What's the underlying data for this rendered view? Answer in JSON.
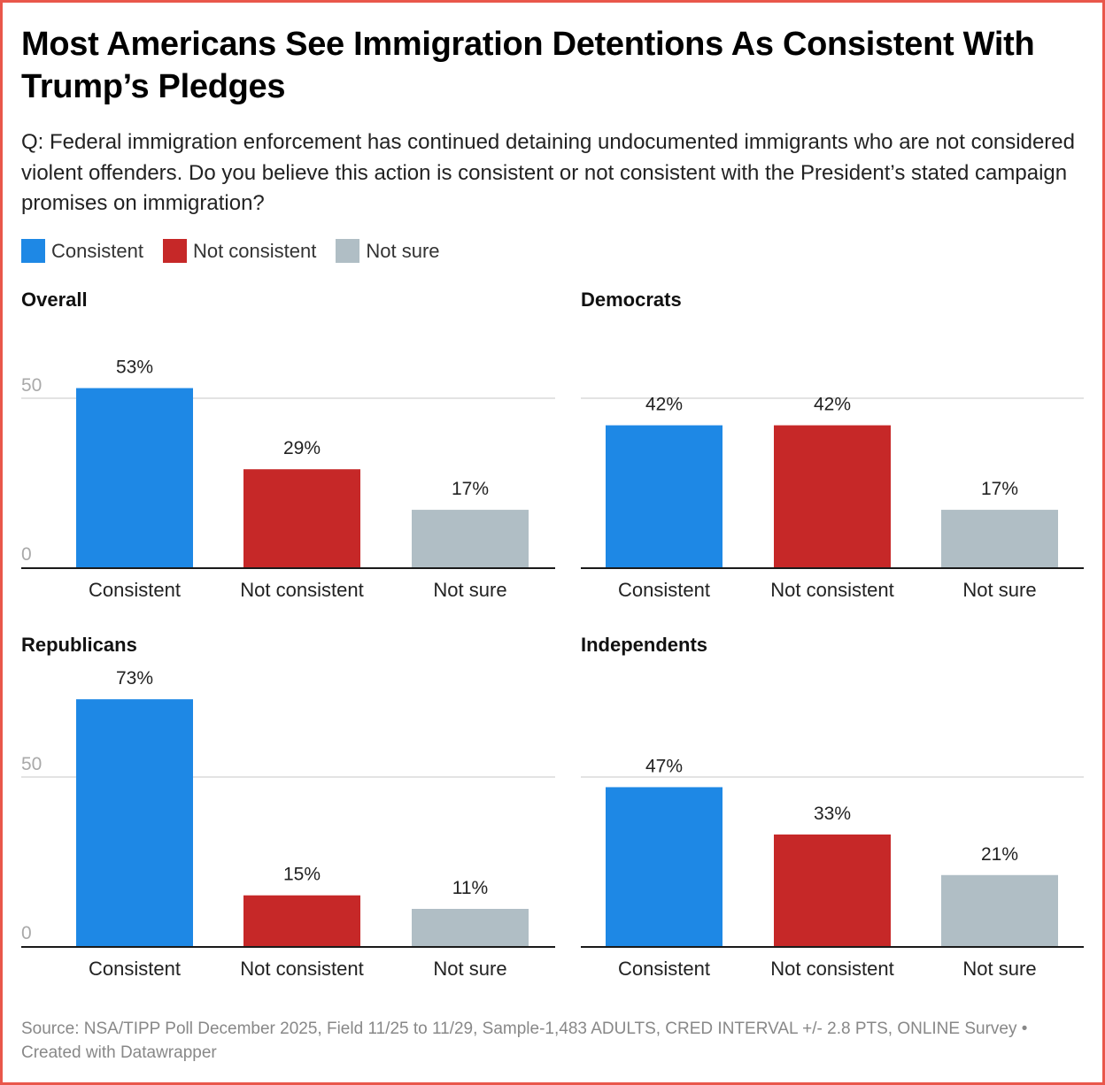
{
  "header": {
    "title": "Most Americans See Immigration Detentions As Consistent With Trump’s Pledges",
    "subtitle": "Q: Federal immigration enforcement has continued detaining undocumented immigrants who are not considered violent offenders. Do you believe this action is consistent or not consistent with the President’s stated campaign promises on immigration?"
  },
  "legend": [
    {
      "label": "Consistent",
      "color": "#1e88e5"
    },
    {
      "label": "Not consistent",
      "color": "#c62828"
    },
    {
      "label": "Not sure",
      "color": "#b0bec5"
    }
  ],
  "footer": {
    "source": "Source: NSA/TIPP Poll December 2025, Field 11/25 to 11/29, Sample-1,483 ADULTS, CRED INTERVAL +/- 2.8 PTS, ONLINE Survey • Created with Datawrapper"
  },
  "chart_data": [
    {
      "type": "bar",
      "title": "Overall",
      "categories": [
        "Consistent",
        "Not consistent",
        "Not sure"
      ],
      "values": [
        53,
        29,
        17
      ],
      "value_labels": [
        "53%",
        "29%",
        "17%"
      ],
      "colors": [
        "#1e88e5",
        "#c62828",
        "#b0bec5"
      ],
      "ylim": [
        0,
        100
      ],
      "yticks": [
        0,
        50
      ],
      "show_tick_labels": true,
      "grid": true,
      "xlabel": "",
      "ylabel": ""
    },
    {
      "type": "bar",
      "title": "Democrats",
      "categories": [
        "Consistent",
        "Not consistent",
        "Not sure"
      ],
      "values": [
        42,
        42,
        17
      ],
      "value_labels": [
        "42%",
        "42%",
        "17%"
      ],
      "colors": [
        "#1e88e5",
        "#c62828",
        "#b0bec5"
      ],
      "ylim": [
        0,
        100
      ],
      "yticks": [
        0,
        50
      ],
      "show_tick_labels": false,
      "grid": true,
      "xlabel": "",
      "ylabel": ""
    },
    {
      "type": "bar",
      "title": "Republicans",
      "categories": [
        "Consistent",
        "Not consistent",
        "Not sure"
      ],
      "values": [
        73,
        15,
        11
      ],
      "value_labels": [
        "73%",
        "15%",
        "11%"
      ],
      "colors": [
        "#1e88e5",
        "#c62828",
        "#b0bec5"
      ],
      "ylim": [
        0,
        100
      ],
      "yticks": [
        0,
        50
      ],
      "show_tick_labels": true,
      "grid": true,
      "xlabel": "",
      "ylabel": ""
    },
    {
      "type": "bar",
      "title": "Independents",
      "categories": [
        "Consistent",
        "Not consistent",
        "Not sure"
      ],
      "values": [
        47,
        33,
        21
      ],
      "value_labels": [
        "47%",
        "33%",
        "21%"
      ],
      "colors": [
        "#1e88e5",
        "#c62828",
        "#b0bec5"
      ],
      "ylim": [
        0,
        100
      ],
      "yticks": [
        0,
        50
      ],
      "show_tick_labels": false,
      "grid": true,
      "xlabel": "",
      "ylabel": ""
    }
  ]
}
